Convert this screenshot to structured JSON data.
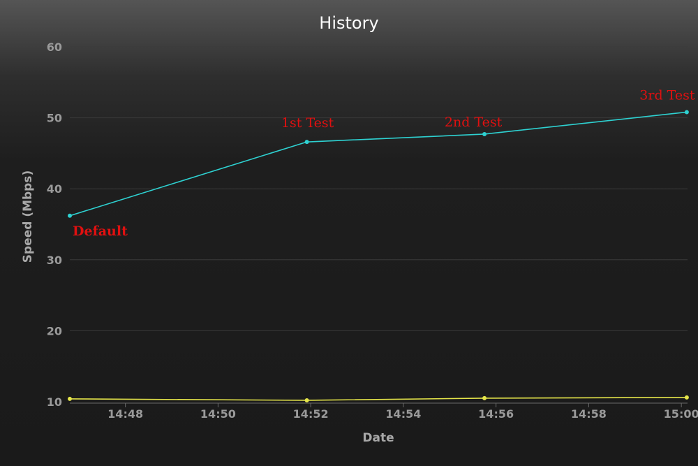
{
  "chart_data": {
    "type": "line",
    "title": "History",
    "xlabel": "Date",
    "ylabel": "Speed (Mbps)",
    "x_ticks": [
      "14:48",
      "14:50",
      "14:52",
      "14:54",
      "14:56",
      "14:58",
      "15:00"
    ],
    "y_ticks": [
      10,
      20,
      30,
      40,
      50,
      60
    ],
    "xlim": [
      "14:46:48",
      "15:00:08"
    ],
    "ylim": [
      10,
      60
    ],
    "grid": true,
    "x": [
      "14:46:48",
      "14:51:55",
      "14:55:45",
      "15:00:07"
    ],
    "series": [
      {
        "color": "#2ed1d1",
        "values": [
          36.2,
          46.6,
          47.7,
          50.8
        ]
      },
      {
        "color": "#e6e64a",
        "values": [
          10.4,
          10.2,
          10.5,
          10.6
        ]
      }
    ],
    "annotations": [
      {
        "text": "Default",
        "point": 0,
        "bold": true
      },
      {
        "text": "1st Test",
        "point": 1,
        "bold": false
      },
      {
        "text": "2nd Test",
        "point": 2,
        "bold": false
      },
      {
        "text": "3rd Test",
        "point": 3,
        "bold": false
      }
    ]
  }
}
